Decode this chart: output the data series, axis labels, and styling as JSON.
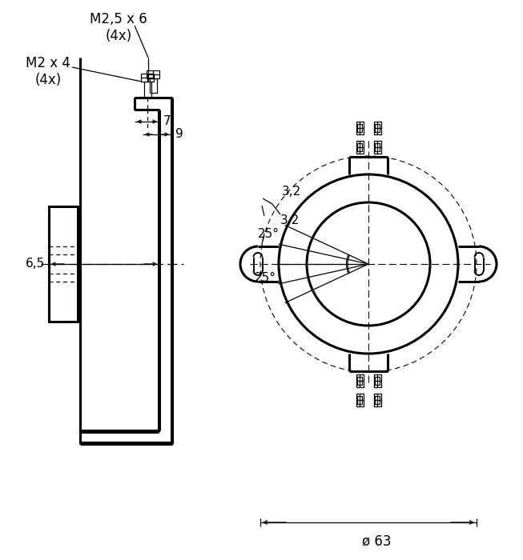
{
  "bg_color": "#ffffff",
  "line_color": "#000000",
  "fig_width": 6.53,
  "fig_height": 7.0,
  "dpi": 100,
  "annotations": {
    "m25x6": "M2,5 x 6\n(4x)",
    "m2x4": "M2 x 4\n(4x)",
    "dim_65": "6,5",
    "dim_7": "7",
    "dim_9": "9",
    "dim_25deg": "25°",
    "dim_32": "3,2",
    "dim_phi63": "ø 63"
  },
  "lw_thick": 2.2,
  "lw_med": 1.4,
  "lw_thin": 0.9,
  "lw_dash": 0.8
}
